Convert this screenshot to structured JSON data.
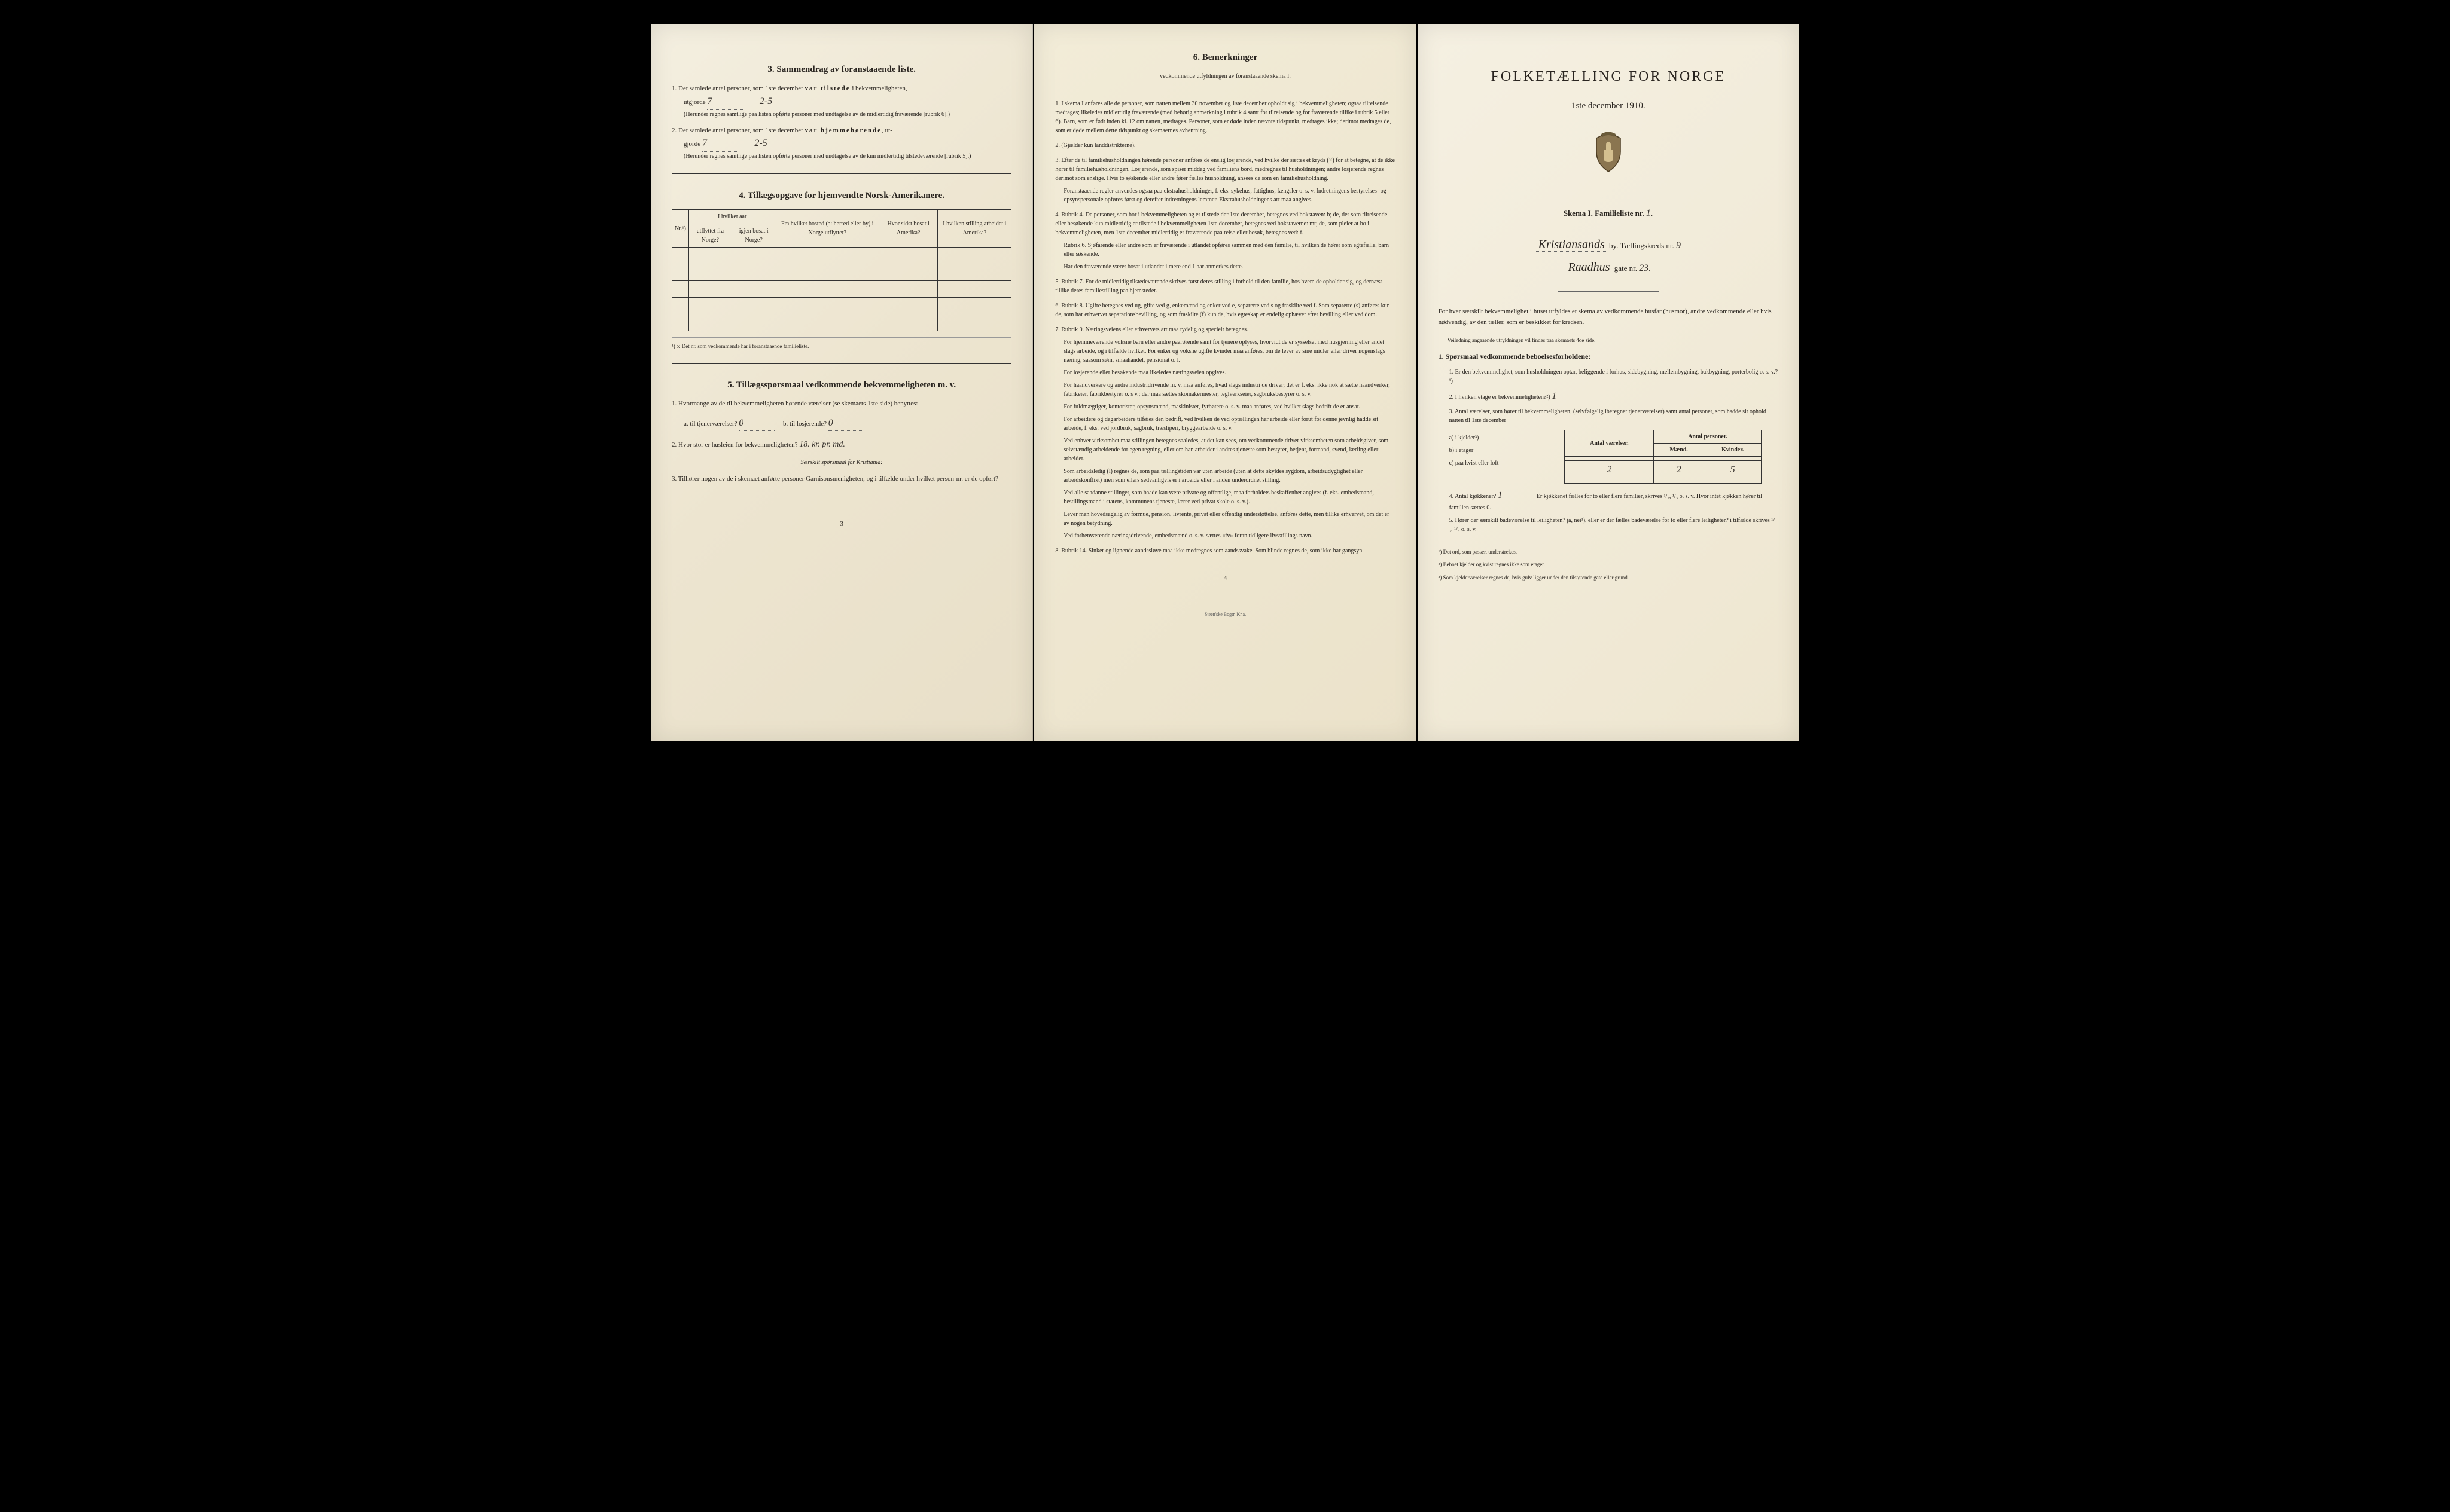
{
  "page1": {
    "section3": {
      "title": "3.   Sammendrag av foranstaaende liste.",
      "item1_pre": "1.  Det samlede antal personer, som 1ste december",
      "item1_bold": "var tilstede",
      "item1_post": "i bekvemmeligheten,",
      "item1_line2_pre": "utgjorde",
      "item1_val1": "7",
      "item1_val2": "2-5",
      "item1_note": "(Herunder regnes samtlige paa listen opførte personer med undtagelse av de midlertidig fraværende [rubrik 6].)",
      "item2_pre": "2.  Det samlede antal personer, som 1ste december",
      "item2_bold": "var hjemmehørende",
      "item2_post": ", ut-",
      "item2_line2_pre": "gjorde",
      "item2_val1": "7",
      "item2_val2": "2-5",
      "item2_note": "(Herunder regnes samtlige paa listen opførte personer med undtagelse av de kun midlertidig tilstedeværende [rubrik 5].)"
    },
    "section4": {
      "title": "4.   Tillægsopgave for hjemvendte Norsk-Amerikanere.",
      "table": {
        "col1": "Nr.¹)",
        "col2_top": "I hvilket aar",
        "col2a": "utflyttet fra Norge?",
        "col2b": "igjen bosat i Norge?",
        "col3": "Fra hvilket bosted (ɔ: herred eller by) i Norge utflyttet?",
        "col4": "Hvor sidst bosat i Amerika?",
        "col5": "I hvilken stilling arbeidet i Amerika?"
      },
      "footnote": "¹) ɔ: Det nr. som vedkommende har i foranstaaende familieliste."
    },
    "section5": {
      "title": "5.   Tillægsspørsmaal vedkommende bekvemmeligheten m. v.",
      "q1": "1.  Hvormange av de til bekvemmeligheten hørende værelser (se skemaets 1ste side) benyttes:",
      "q1a_label": "a.  til tjenerværelser?",
      "q1a_val": "0",
      "q1b_label": "b.  til losjerende?",
      "q1b_val": "0",
      "q2_label": "2.  Hvor stor er husleien for bekvemmeligheten?",
      "q2_val": "18. kr. pr. md.",
      "kristiania_note": "Særskilt spørsmaal for Kristiania:",
      "q3": "3.  Tilhører nogen av de i skemaet anførte personer Garnisonsmenigheten, og i tilfælde under hvilket person-nr. er de opført?"
    },
    "page_num": "3"
  },
  "page2": {
    "section6": {
      "title": "6.   Bemerkninger",
      "subtitle": "vedkommende utfyldningen av foranstaaende skema I.",
      "items": [
        {
          "num": "1.",
          "text": "I skema I anføres alle de personer, som natten mellem 30 november og 1ste december opholdt sig i bekvemmeligheten; ogsaa tilreisende medtages; likeledes midlertidig fraværende (med behørig anmerkning i rubrik 4 samt for tilreisende og for fraværende tillike i rubrik 5 eller 6). Barn, som er født inden kl. 12 om natten, medtages. Personer, som er døde inden nævnte tidspunkt, medtages ikke; derimot medtages de, som er døde mellem dette tidspunkt og skemaernes avhentning."
        },
        {
          "num": "2.",
          "text": "(Gjælder kun landdistrikterne)."
        },
        {
          "num": "3.",
          "text": "Efter de til familiehusholdningen hørende personer anføres de enslig losjerende, ved hvilke der sættes et kryds (×) for at betegne, at de ikke hører til familiehusholdningen. Losjerende, som spiser middag ved familiens bord, medregnes til husholdningen; andre losjerende regnes derimot som enslige. Hvis to søskende eller andre fører fælles husholdning, ansees de som en familiehusholdning.",
          "para2": "Foranstaaende regler anvendes ogsaa paa ekstrahusholdninger, f. eks. sykehus, fattighus, fængsler o. s. v. Indretningens bestyrelses- og opsynspersonale opføres først og derefter indretningens lemmer. Ekstrahusholdningens art maa angives."
        },
        {
          "num": "4.",
          "text": "Rubrik 4. De personer, som bor i bekvemmeligheten og er tilstede der 1ste december, betegnes ved bokstaven: b; de, der som tilreisende eller besøkende kun midlertidig er tilstede i bekvemmeligheten 1ste december, betegnes ved bokstaverne: mt; de, som pleier at bo i bekvemmeligheten, men 1ste december midlertidig er fraværende paa reise eller besøk, betegnes ved: f.",
          "para2": "Rubrik 6. Sjøfarende eller andre som er fraværende i utlandet opføres sammen med den familie, til hvilken de hører som egtefælle, barn eller søskende.",
          "para3": "Har den fraværende været bosat i utlandet i mere end 1 aar anmerkes dette."
        },
        {
          "num": "5.",
          "text": "Rubrik 7. For de midlertidig tilstedeværende skrives først deres stilling i forhold til den familie, hos hvem de opholder sig, og dernæst tillike deres familiestilling paa hjemstedet."
        },
        {
          "num": "6.",
          "text": "Rubrik 8. Ugifte betegnes ved ug, gifte ved g, enkemænd og enker ved e, separerte ved s og fraskilte ved f. Som separerte (s) anføres kun de, som har erhvervet separationsbevilling, og som fraskilte (f) kun de, hvis egteskap er endelig ophævet efter bevilling eller ved dom."
        },
        {
          "num": "7.",
          "text": "Rubrik 9. Næringsveiens eller erhvervets art maa tydelig og specielt betegnes.",
          "para2": "For hjemmeværende voksne barn eller andre paarørende samt for tjenere oplyses, hvorvidt de er sysselsat med husgjerning eller andet slags arbeide, og i tilfælde hvilket. For enker og voksne ugifte kvinder maa anføres, om de lever av sine midler eller driver nogenslags næring, saasom søm, smaahandel, pensionat o. l.",
          "para3": "For losjerende eller besøkende maa likeledes næringsveien opgives.",
          "para4": "For haandverkere og andre industridrivende m. v. maa anføres, hvad slags industri de driver; det er f. eks. ikke nok at sætte haandverker, fabrikeier, fabrikbestyrer o. s v.; der maa sættes skomakermester, teglverkseier, sagbruksbestyrer o. s. v.",
          "para5": "For fuldmægtiger, kontorister, opsynsmænd, maskinister, fyrbøtere o. s. v. maa anføres, ved hvilket slags bedrift de er ansat.",
          "para6": "For arbeidere og dagarbeidere tilføies den bedrift, ved hvilken de ved optællingen har arbeide eller forut for denne jevnlig hadde sit arbeide, f. eks. ved jordbruk, sagbruk, træsliperi, bryggearbeide o. s. v.",
          "para7": "Ved enhver virksomhet maa stillingen betegnes saaledes, at det kan sees, om vedkommende driver virksomheten som arbeidsgiver, som selvstændig arbeidende for egen regning, eller om han arbeider i andres tjeneste som bestyrer, betjent, formand, svend, lærling eller arbeider.",
          "para8": "Som arbeidsledig (l) regnes de, som paa tællingstiden var uten arbeide (uten at dette skyldes sygdom, arbeidsudygtighet eller arbeidskonflikt) men som ellers sedvanligvis er i arbeide eller i anden underordnet stilling.",
          "para9": "Ved alle saadanne stillinger, som baade kan være private og offentlige, maa forholdets beskaffenhet angives (f. eks. embedsmand, bestillingsmand i statens, kommunens tjeneste, lærer ved privat skole o. s. v.).",
          "para10": "Lever man hovedsagelig av formue, pension, livrente, privat eller offentlig understøttelse, anføres dette, men tillike erhvervet, om det er av nogen betydning.",
          "para11": "Ved forhenværende næringsdrivende, embedsmænd o. s. v. sættes «fv» foran tidligere livsstillings navn."
        },
        {
          "num": "8.",
          "text": "Rubrik 14. Sinker og lignende aandssløve maa ikke medregnes som aandssvake. Som blinde regnes de, som ikke har gangsyn."
        }
      ]
    },
    "page_num": "4",
    "publisher": "Steen'ske Bogtr.  Kr.a."
  },
  "page3": {
    "main_title": "FOLKETÆLLING FOR NORGE",
    "date": "1ste december 1910.",
    "skema_label": "Skema I.   Familieliste nr.",
    "skema_num": "1.",
    "city": "Kristiansands",
    "city_suffix": "by.  Tællingskreds nr.",
    "kreds_num": "9",
    "street": "Raadhus",
    "street_suffix": "gate nr.",
    "gate_num": "23.",
    "intro": "For hver særskilt bekvemmelighet i huset utfyldes et skema av vedkommende husfar (husmor), andre vedkommende eller hvis nødvendig, av den tæller, som er beskikket for kredsen.",
    "veiledning": "Veiledning angaaende utfyldningen vil findes paa skemaets 4de side.",
    "spors_heading": "1. Spørsmaal vedkommende beboelsesforholdene:",
    "sp1": "1.  Er den bekvemmelighet, som husholdningen optar, beliggende i forhus, sidebygning, mellembygning, bakbygning, porterbolig o. s. v.?¹)",
    "sp2_pre": "2.  I hvilken etage er bekvemmeligheten?²)",
    "sp2_val": "1",
    "sp3": "3.  Antal værelser, som hører til bekvemmeligheten, (selvfølgelig iberegnet tjenerværelser) samt antal personer, som hadde sit ophold natten til 1ste december",
    "rooms_table": {
      "h1": "Antal værelser.",
      "h2": "Antal personer.",
      "h2a": "Mænd.",
      "h2b": "Kvinder.",
      "rowA": "a) i kjelder³)",
      "rowB": "b) i etager",
      "rowB_v": "2",
      "rowB_m": "2",
      "rowB_k": "5",
      "rowC": "c) paa kvist eller loft"
    },
    "sp4_pre": "4.  Antal kjøkkener?",
    "sp4_val": "1",
    "sp4_post": "Er kjøkkenet fælles for to eller flere familier, skrives ¹/₂, ¹/₃ o. s. v.  Hvor intet kjøkken hører til familien sættes 0.",
    "sp5": "5.  Hører der særskilt badeværelse til leiligheten?  ja, nei¹), eller er der fælles badeværelse for to eller flere leiligheter?  i tilfælde skrives ¹/₂, ¹/₃ o. s. v.",
    "fn1": "¹)  Det ord, som passer, understrekes.",
    "fn2": "²)  Beboet kjelder og kvist regnes ikke som etager.",
    "fn3": "³)  Som kjelderværelser regnes de, hvis gulv ligger under den tilstøtende gate eller grund."
  }
}
